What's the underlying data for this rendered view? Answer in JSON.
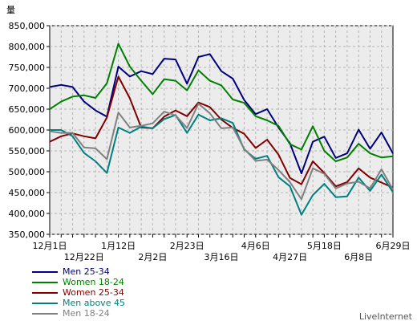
{
  "chart_data": {
    "type": "line",
    "ylabel": "量",
    "ylim": [
      350000,
      850000
    ],
    "yticks": [
      "850,000",
      "800,000",
      "750,000",
      "700,000",
      "650,000",
      "600,000",
      "550,000",
      "500,000",
      "450,000",
      "400,000",
      "350,000"
    ],
    "ytick_values": [
      850000,
      800000,
      750000,
      700000,
      650000,
      600000,
      550000,
      500000,
      450000,
      400000,
      350000
    ],
    "x_tick_labels_row1": [
      {
        "label": "12月1日",
        "index": 0
      },
      {
        "label": "1月12日",
        "index": 6
      },
      {
        "label": "2月23日",
        "index": 12
      },
      {
        "label": "4月6日",
        "index": 18
      },
      {
        "label": "5月18日",
        "index": 24
      },
      {
        "label": "6月29日",
        "index": 30
      }
    ],
    "x_tick_labels_row2": [
      {
        "label": "12月22日",
        "index": 3
      },
      {
        "label": "2月2日",
        "index": 9
      },
      {
        "label": "3月16日",
        "index": 15
      },
      {
        "label": "4月27日",
        "index": 21
      },
      {
        "label": "6月8日",
        "index": 27
      }
    ],
    "series": [
      {
        "name": "Men 25-34",
        "color": "#000080",
        "values": [
          703000,
          708000,
          703000,
          668000,
          647000,
          632000,
          752000,
          728000,
          741000,
          734000,
          771000,
          769000,
          711000,
          775000,
          782000,
          741000,
          723000,
          672000,
          638000,
          650000,
          606000,
          568000,
          496000,
          572000,
          584000,
          533000,
          544000,
          601000,
          555000,
          594000,
          544000
        ]
      },
      {
        "name": "Women 18-24",
        "color": "#008000",
        "values": [
          650000,
          668000,
          680000,
          683000,
          677000,
          712000,
          807000,
          752000,
          718000,
          686000,
          722000,
          718000,
          695000,
          743000,
          718000,
          707000,
          673000,
          665000,
          633000,
          623000,
          610000,
          566000,
          553000,
          609000,
          550000,
          525000,
          534000,
          567000,
          544000,
          534000,
          537000
        ]
      },
      {
        "name": "Women 25-34",
        "color": "#800000",
        "values": [
          572000,
          585000,
          592000,
          585000,
          580000,
          630000,
          728000,
          676000,
          606000,
          604000,
          632000,
          647000,
          633000,
          666000,
          655000,
          625000,
          605000,
          591000,
          557000,
          577000,
          541000,
          485000,
          470000,
          525000,
          497000,
          465000,
          475000,
          508000,
          486000,
          474000,
          462000
        ]
      },
      {
        "name": "Men above 45",
        "color": "#008080",
        "values": [
          600000,
          600000,
          585000,
          545000,
          525000,
          497000,
          606000,
          593000,
          608000,
          604000,
          626000,
          636000,
          593000,
          637000,
          623000,
          628000,
          617000,
          553000,
          531000,
          538000,
          487000,
          465000,
          397000,
          444000,
          471000,
          439000,
          441000,
          486000,
          454000,
          493000,
          451000
        ]
      },
      {
        "name": "Men 18-24",
        "color": "#808080",
        "values": [
          597000,
          593000,
          593000,
          558000,
          556000,
          530000,
          642000,
          606000,
          610000,
          616000,
          644000,
          635000,
          605000,
          663000,
          640000,
          604000,
          606000,
          555000,
          526000,
          529000,
          504000,
          475000,
          434000,
          508000,
          495000,
          460000,
          472000,
          476000,
          460000,
          506000,
          457000
        ]
      }
    ]
  },
  "watermark": "LiveInternet"
}
